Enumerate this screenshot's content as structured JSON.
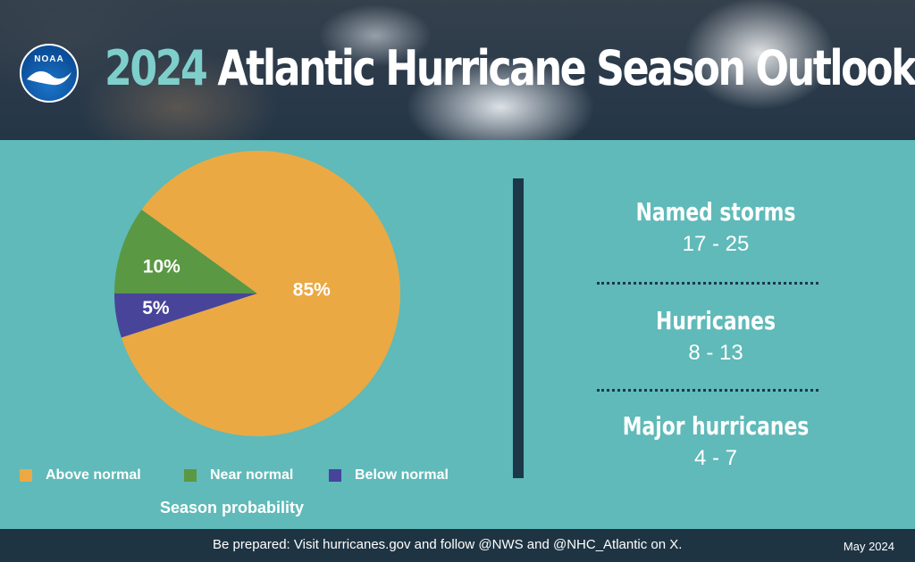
{
  "header": {
    "logo_text": "NOAA",
    "title_year": "2024",
    "title_rest": " Atlantic Hurricane Season Outlook"
  },
  "colors": {
    "background": "#5fbab9",
    "above_normal": "#eba943",
    "near_normal": "#5a9843",
    "below_normal": "#48449a",
    "dark": "#1c3747",
    "year_accent": "#7ecfcb"
  },
  "chart_data": {
    "type": "pie",
    "title": "Season probability",
    "slices": [
      {
        "name": "Above normal",
        "value": 85,
        "label": "85%",
        "color": "#eba943"
      },
      {
        "name": "Near normal",
        "value": 10,
        "label": "10%",
        "color": "#5a9843"
      },
      {
        "name": "Below normal",
        "value": 5,
        "label": "5%",
        "color": "#48449a"
      }
    ],
    "legend_position": "bottom"
  },
  "stats": [
    {
      "label": "Named storms",
      "range": "17 - 25"
    },
    {
      "label": "Hurricanes",
      "range": "8 - 13"
    },
    {
      "label": "Major hurricanes",
      "range": "4 - 7"
    }
  ],
  "footer": {
    "message": "Be prepared: Visit hurricanes.gov and follow @NWS and @NHC_Atlantic on X.",
    "date": "May 2024"
  }
}
